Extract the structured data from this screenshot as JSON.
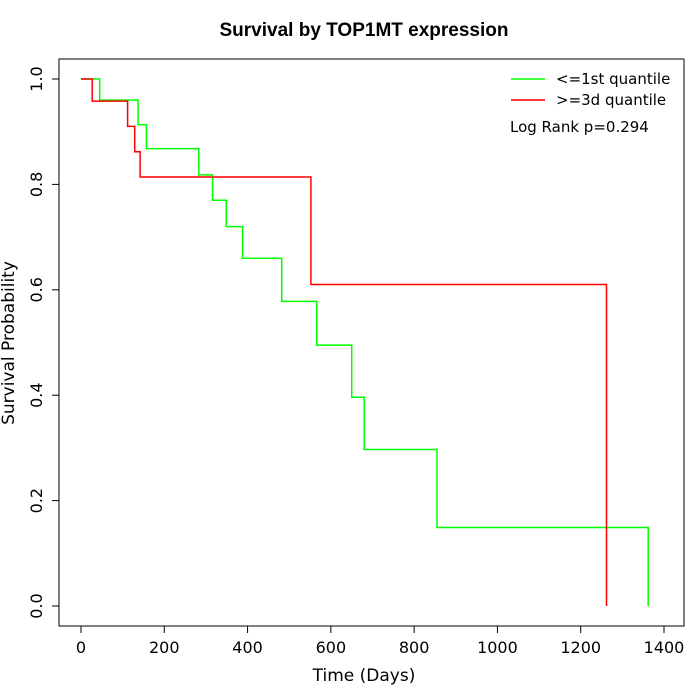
{
  "chart_data": {
    "type": "line",
    "title": "Survival by TOP1MT expression",
    "xlabel": "Time (Days)",
    "ylabel": "Survival Probability",
    "xlim": [
      0,
      1400
    ],
    "ylim": [
      0,
      1.0
    ],
    "xticks": [
      0,
      200,
      400,
      600,
      800,
      1000,
      1200,
      1400
    ],
    "yticks": [
      0.0,
      0.2,
      0.4,
      0.6,
      0.8,
      1.0
    ],
    "xtick_labels": [
      "0",
      "200",
      "400",
      "600",
      "800",
      "1000",
      "1200",
      "1400"
    ],
    "ytick_labels": [
      "0.0",
      "0.2",
      "0.4",
      "0.6",
      "0.8",
      "1.0"
    ],
    "grid": false,
    "legend_position": "top-right",
    "annotation": "Log Rank p=0.294",
    "series": [
      {
        "name": "<=1st quantile",
        "color": "#00ff00",
        "step": "post",
        "x": [
          0,
          45,
          45,
          137,
          137,
          157,
          157,
          283,
          283,
          316,
          316,
          349,
          349,
          388,
          388,
          482,
          482,
          566,
          566,
          650,
          650,
          680,
          680,
          855,
          855,
          1362,
          1362
        ],
        "y": [
          1.0,
          1.0,
          0.96,
          0.96,
          0.913,
          0.913,
          0.868,
          0.868,
          0.818,
          0.818,
          0.77,
          0.77,
          0.72,
          0.72,
          0.66,
          0.66,
          0.578,
          0.578,
          0.495,
          0.495,
          0.396,
          0.396,
          0.297,
          0.297,
          0.149,
          0.149,
          0.0
        ]
      },
      {
        "name": ">=3d quantile",
        "color": "#ff0000",
        "step": "post",
        "x": [
          0,
          27,
          27,
          112,
          112,
          129,
          129,
          142,
          142,
          552,
          552,
          1262,
          1262
        ],
        "y": [
          1.0,
          1.0,
          0.958,
          0.958,
          0.91,
          0.91,
          0.862,
          0.862,
          0.814,
          0.814,
          0.61,
          0.61,
          0.0
        ]
      }
    ]
  }
}
